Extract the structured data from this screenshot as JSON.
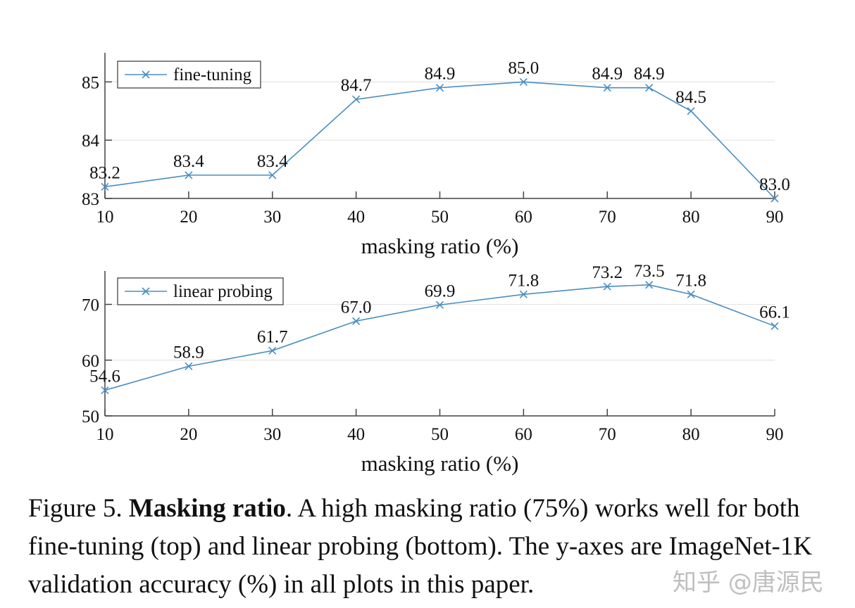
{
  "chart_data": [
    {
      "type": "line",
      "x": [
        10,
        20,
        30,
        40,
        50,
        60,
        70,
        75,
        80,
        90
      ],
      "series": [
        {
          "name": "fine-tuning",
          "values": [
            83.2,
            83.4,
            83.4,
            84.7,
            84.9,
            85.0,
            84.9,
            84.9,
            84.5,
            83.0
          ]
        }
      ],
      "data_labels": [
        "83.2",
        "83.4",
        "83.4",
        "84.7",
        "84.9",
        "85.0",
        "84.9",
        "84.9",
        "84.5",
        "83.0"
      ],
      "xlabel": "masking ratio (%)",
      "ylabel": "",
      "xlim": [
        10,
        90
      ],
      "ylim": [
        83,
        85.5
      ],
      "xticks": [
        "10",
        "20",
        "30",
        "40",
        "50",
        "60",
        "70",
        "80",
        "90"
      ],
      "yticks": [
        "83",
        "84",
        "85"
      ],
      "grid": "horizontal",
      "legend": "top-left",
      "color": "#4a8ec2",
      "marker": "x"
    },
    {
      "type": "line",
      "x": [
        10,
        20,
        30,
        40,
        50,
        60,
        70,
        75,
        80,
        90
      ],
      "series": [
        {
          "name": "linear probing",
          "values": [
            54.6,
            58.9,
            61.7,
            67.0,
            69.9,
            71.8,
            73.2,
            73.5,
            71.8,
            66.1
          ]
        }
      ],
      "data_labels": [
        "54.6",
        "58.9",
        "61.7",
        "67.0",
        "69.9",
        "71.8",
        "73.2",
        "73.5",
        "71.8",
        "66.1"
      ],
      "xlabel": "masking ratio (%)",
      "ylabel": "",
      "xlim": [
        10,
        90
      ],
      "ylim": [
        50,
        76
      ],
      "xticks": [
        "10",
        "20",
        "30",
        "40",
        "50",
        "60",
        "70",
        "80",
        "90"
      ],
      "yticks": [
        "50",
        "60",
        "70"
      ],
      "grid": "horizontal",
      "legend": "top-left",
      "color": "#4a8ec2",
      "marker": "x"
    }
  ],
  "caption": {
    "label": "Figure 5.",
    "bold": "Masking ratio",
    "text": ". A high masking ratio (75%) works well for both fine-tuning (top) and linear probing (bottom). The y-axes are ImageNet-1K validation accuracy (%) in all plots in this paper."
  },
  "watermark": "知乎 @唐源民"
}
